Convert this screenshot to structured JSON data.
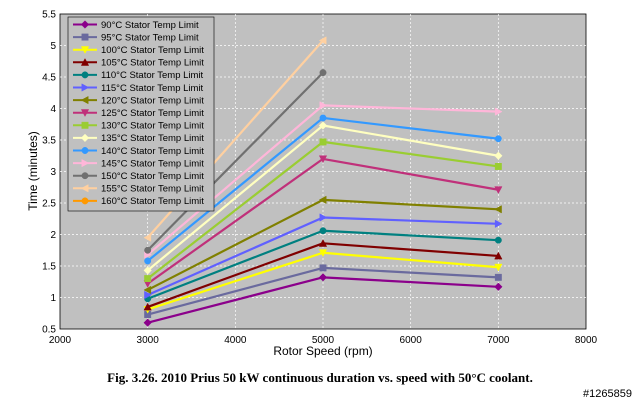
{
  "caption": "Fig. 3.26. 2010 Prius 50 kW continuous duration vs. speed with 50°C coolant.",
  "watermark": "#1265859",
  "chart_data": {
    "type": "line",
    "title": "",
    "xlabel": "Rotor Speed (rpm)",
    "ylabel": "Time (minutes)",
    "xlim": [
      2000,
      8000
    ],
    "ylim": [
      0.5,
      5.5
    ],
    "xticks": [
      2000,
      3000,
      4000,
      5000,
      6000,
      7000,
      8000
    ],
    "yticks": [
      0.5,
      1,
      1.5,
      2,
      2.5,
      3,
      3.5,
      4,
      4.5,
      5,
      5.5
    ],
    "x": [
      3000,
      5000,
      7000
    ],
    "grid": true,
    "legend_position": "top-left",
    "series": [
      {
        "name": "90°C Stator Temp Limit",
        "color": "#8B008B",
        "marker": "diamond",
        "values": [
          0.6,
          1.32,
          1.17
        ]
      },
      {
        "name": "95°C Stator Temp Limit",
        "color": "#6A6A9E",
        "marker": "square",
        "values": [
          0.73,
          1.47,
          1.32
        ]
      },
      {
        "name": "100°C Stator Temp Limit",
        "color": "#FFFF00",
        "marker": "triangle-down",
        "values": [
          0.81,
          1.71,
          1.48
        ]
      },
      {
        "name": "105°C Stator Temp Limit",
        "color": "#800000",
        "marker": "triangle-up",
        "values": [
          0.85,
          1.86,
          1.66
        ]
      },
      {
        "name": "110°C Stator Temp Limit",
        "color": "#008080",
        "marker": "circle",
        "values": [
          0.98,
          2.06,
          1.91
        ]
      },
      {
        "name": "115°C Stator Temp Limit",
        "color": "#6060FF",
        "marker": "triangle-right",
        "values": [
          1.04,
          2.27,
          2.17
        ]
      },
      {
        "name": "120°C Stator Temp Limit",
        "color": "#808000",
        "marker": "triangle-left",
        "values": [
          1.12,
          2.55,
          2.4
        ]
      },
      {
        "name": "125°C Stator Temp Limit",
        "color": "#C0307A",
        "marker": "triangle-down",
        "values": [
          1.22,
          3.2,
          2.71
        ]
      },
      {
        "name": "130°C Stator Temp Limit",
        "color": "#9ACD32",
        "marker": "square",
        "values": [
          1.3,
          3.47,
          3.08
        ]
      },
      {
        "name": "135°C Stator Temp Limit",
        "color": "#FFFFC0",
        "marker": "diamond",
        "values": [
          1.43,
          3.73,
          3.25
        ]
      },
      {
        "name": "140°C Stator Temp Limit",
        "color": "#3399FF",
        "marker": "circle",
        "values": [
          1.58,
          3.85,
          3.52
        ]
      },
      {
        "name": "145°C Stator Temp Limit",
        "color": "#FFB6D9",
        "marker": "triangle-right",
        "values": [
          1.68,
          4.05,
          3.95
        ]
      },
      {
        "name": "150°C Stator Temp Limit",
        "color": "#707070",
        "marker": "circle",
        "values": [
          1.75,
          4.57,
          null
        ]
      },
      {
        "name": "155°C Stator Temp Limit",
        "color": "#FFD0A0",
        "marker": "triangle-left",
        "values": [
          1.95,
          5.08,
          null
        ]
      },
      {
        "name": "160°C Stator Temp Limit",
        "color": "#FF9900",
        "marker": "circle",
        "values": [
          null,
          null,
          null
        ]
      }
    ]
  }
}
